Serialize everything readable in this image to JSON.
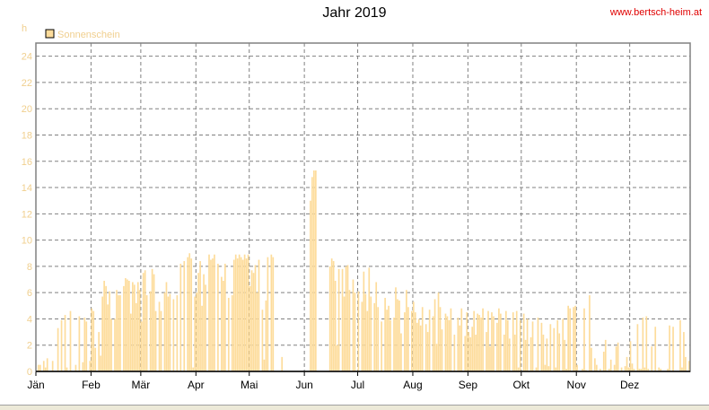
{
  "header": {
    "title": "Jahr 2019",
    "url": "www.bertsch-heim.at"
  },
  "chart_data": {
    "type": "bar",
    "title": "Jahr 2019",
    "ylabel": "h",
    "ylim": [
      0,
      25
    ],
    "yticks": [
      0,
      2,
      4,
      6,
      8,
      10,
      12,
      14,
      16,
      18,
      20,
      22,
      24
    ],
    "months": [
      "Jän",
      "Feb",
      "Mär",
      "Apr",
      "Mai",
      "Jun",
      "Jul",
      "Aug",
      "Sep",
      "Okt",
      "Nov",
      "Dez"
    ],
    "grid": true,
    "legend_position": "top-left",
    "series": [
      {
        "name": "Sonnenschein",
        "color": "#fddc9b",
        "values": [
          0,
          0.5,
          0.5,
          0,
          0.8,
          0.3,
          1.0,
          0,
          0,
          0.8,
          0,
          0,
          3.3,
          0,
          3.9,
          0,
          4.3,
          0.3,
          0,
          4.6,
          0,
          0,
          0.5,
          0,
          4.2,
          0,
          0.7,
          4.1,
          3.8,
          0,
          0.8,
          4.8,
          4.6,
          1.8,
          0,
          3.0,
          1.2,
          5.7,
          6.9,
          6.5,
          5.1,
          6.1,
          4.0,
          0,
          4.0,
          6.2,
          5.8,
          5.8,
          0,
          6.5,
          7.1,
          7.0,
          6.9,
          4.4,
          6.8,
          6.6,
          5.2,
          6.8,
          6.2,
          3.8,
          7.5,
          7.7,
          5.8,
          0,
          6.1,
          7.8,
          7.4,
          4.6,
          0,
          5.3,
          4.6,
          0,
          6.0,
          6.8,
          5.7,
          5.9,
          0,
          5.5,
          0,
          5.8,
          0,
          8.2,
          0,
          8.4,
          0,
          8.7,
          9.0,
          8.6,
          0.3,
          5.7,
          6.0,
          7.5,
          8.4,
          5.0,
          7.4,
          6.6,
          0,
          8.9,
          8.5,
          8.6,
          8.9,
          0,
          8.2,
          0,
          7.2,
          6.9,
          8.2,
          0,
          5.6,
          0,
          5.8,
          8.5,
          8.9,
          8.6,
          8.9,
          8.7,
          8.5,
          8.9,
          8.6,
          8.9,
          6.5,
          7.7,
          7.5,
          8.1,
          6.0,
          8.5,
          0,
          4.7,
          0.9,
          5.4,
          8.7,
          0,
          8.9,
          8.7,
          0,
          0,
          0,
          0,
          1.1,
          0,
          0,
          0,
          0,
          0,
          0,
          0,
          0,
          0,
          0,
          0,
          0,
          0,
          0,
          0,
          13.0,
          14.8,
          15.3,
          15.3,
          0,
          0,
          0,
          0,
          0,
          0,
          0,
          8.0,
          8.6,
          8.4,
          6.9,
          2.0,
          7.8,
          0,
          7.8,
          5.7,
          8.0,
          8.1,
          6.2,
          0,
          7.0,
          6.0,
          0,
          6.1,
          0,
          5.3,
          7.6,
          5.9,
          4.6,
          7.9,
          5.7,
          0,
          5.2,
          6.8,
          4.9,
          0,
          3.8,
          0,
          5.6,
          4.7,
          5.0,
          3.9,
          0,
          4.1,
          6.4,
          5.5,
          5.4,
          2.9,
          0,
          4.5,
          6.2,
          4.9,
          0,
          4.6,
          5.3,
          4.5,
          3.7,
          4.0,
          3.5,
          4.9,
          0,
          3.6,
          3.0,
          4.7,
          0,
          4.2,
          5.5,
          2.1,
          6.0,
          4.9,
          3.2,
          0,
          4.4,
          4.2,
          3.9,
          4.8,
          0,
          2.8,
          0,
          4.1,
          3.5,
          4.8,
          0,
          2.7,
          4.5,
          3.0,
          2.6,
          3.4,
          4.6,
          2.8,
          4.4,
          4.3,
          4.1,
          4.8,
          0,
          3.0,
          4.6,
          1.9,
          4.5,
          4.2,
          0,
          3.7,
          4.8,
          4.4,
          0,
          2.8,
          4.6,
          3.9,
          2.5,
          0,
          4.5,
          2.8,
          4.6,
          0.3,
          3.9,
          0,
          4.4,
          2.4,
          4.0,
          0,
          2.6,
          3.8,
          0,
          0.3,
          4.1,
          0,
          3.7,
          2.8,
          0.5,
          2.5,
          0.4,
          3.6,
          0,
          3.3,
          0.3,
          3.9,
          2.9,
          0,
          4.0,
          2.4,
          0.2,
          5.0,
          4.8,
          0,
          4.9,
          5.0,
          0.5,
          0,
          0,
          0.2,
          4.8,
          0.1,
          0,
          5.8,
          1.8,
          0,
          1.0,
          0.5,
          0,
          0.2,
          0,
          1.5,
          2.4,
          0,
          0.2,
          0.9,
          0,
          0.5,
          1.9,
          2.2,
          0,
          0.3,
          0,
          0.4,
          1.1,
          0.3,
          2.3,
          0.6,
          0.2,
          0,
          3.6,
          0.2,
          0.2,
          4.1,
          0.3,
          4.2,
          0.2,
          0,
          1.9,
          0,
          3.4,
          0,
          0.3,
          0.2,
          0,
          0,
          0,
          0.2,
          3.5,
          0,
          3.4,
          0,
          0,
          0,
          3.9,
          0.3,
          3.0,
          1.1,
          0,
          0.8
        ]
      }
    ]
  }
}
